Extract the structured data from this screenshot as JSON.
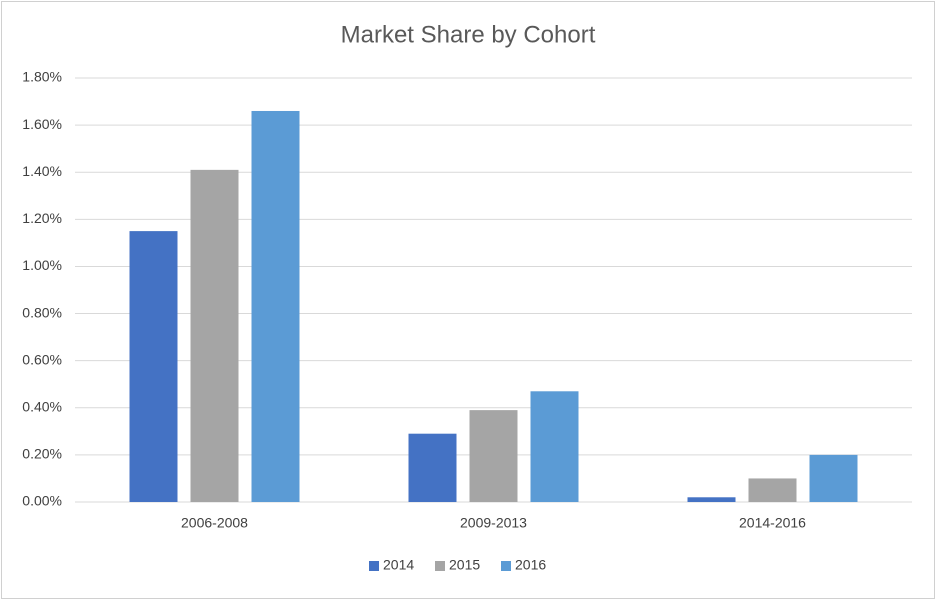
{
  "chart_data": {
    "type": "bar",
    "title": "Market Share by Cohort",
    "categories": [
      "2006-2008",
      "2009-2013",
      "2014-2016"
    ],
    "series": [
      {
        "name": "2014",
        "color": "#4472c4",
        "values": [
          1.15,
          0.29,
          0.02
        ]
      },
      {
        "name": "2015",
        "color": "#a5a5a5",
        "values": [
          1.41,
          0.39,
          0.1
        ]
      },
      {
        "name": "2016",
        "color": "#5b9bd5",
        "values": [
          1.66,
          0.47,
          0.2
        ]
      }
    ],
    "ylim": [
      0,
      1.8
    ],
    "yticks": [
      {
        "value": 0,
        "label": "0.00%"
      },
      {
        "value": 0.2,
        "label": "0.20%"
      },
      {
        "value": 0.4,
        "label": "0.40%"
      },
      {
        "value": 0.6,
        "label": "0.60%"
      },
      {
        "value": 0.8,
        "label": "0.80%"
      },
      {
        "value": 1.0,
        "label": "1.00%"
      },
      {
        "value": 1.2,
        "label": "1.20%"
      },
      {
        "value": 1.4,
        "label": "1.40%"
      },
      {
        "value": 1.6,
        "label": "1.60%"
      },
      {
        "value": 1.8,
        "label": "1.80%"
      }
    ],
    "grid": true,
    "legend": "bottom"
  }
}
